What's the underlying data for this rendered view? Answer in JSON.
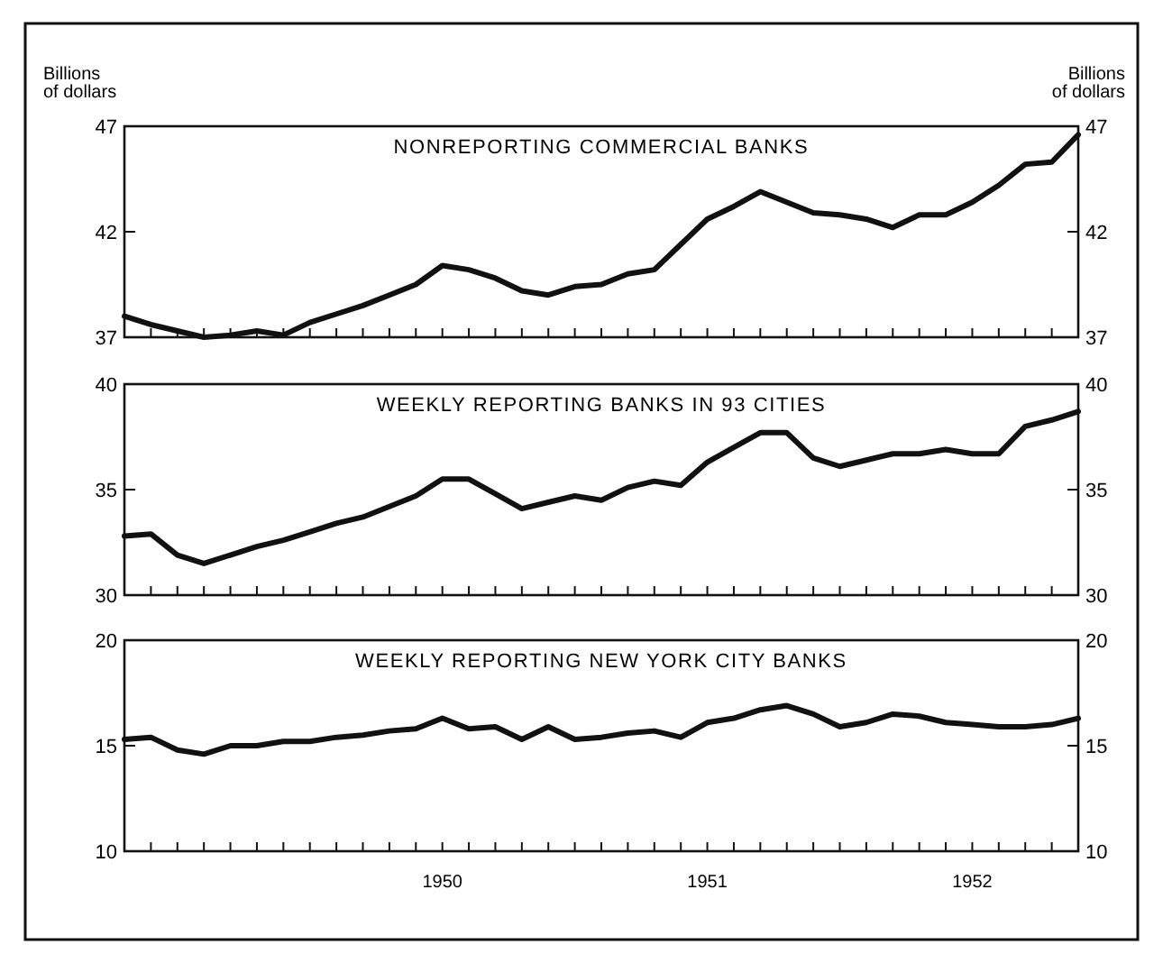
{
  "chart_data": [
    {
      "type": "line",
      "title": "NONREPORTING COMMERCIAL BANKS",
      "ylabel": "Billions of dollars",
      "y2label": "Billions of dollars",
      "categories": [
        null,
        null,
        null,
        null,
        null,
        null,
        null,
        null,
        null,
        null,
        null,
        null,
        null,
        null,
        null,
        null,
        null,
        null,
        null,
        null,
        null,
        null,
        null,
        null,
        null,
        null,
        null,
        null,
        null,
        null,
        null,
        null,
        null,
        null,
        null,
        null,
        null
      ],
      "tick_labels": "y",
      "ylim": [
        37,
        47
      ],
      "yticks": [
        37,
        42,
        47
      ],
      "y2lim": [
        37,
        47
      ],
      "y2ticks": [
        37,
        42,
        47
      ],
      "marker": "none",
      "line_style": "solid",
      "series": [
        {
          "color": "#111111",
          "values": [
            38.0,
            37.6,
            37.3,
            37.0,
            37.1,
            37.3,
            37.1,
            37.7,
            38.1,
            38.5,
            39.0,
            39.5,
            40.4,
            40.2,
            39.8,
            39.2,
            39.0,
            39.4,
            39.5,
            40.0,
            40.2,
            41.4,
            42.6,
            43.2,
            43.9,
            43.4,
            42.9,
            42.8,
            42.6,
            42.2,
            42.8,
            42.8,
            43.4,
            44.2,
            45.2,
            45.3,
            46.6
          ]
        }
      ]
    },
    {
      "type": "line",
      "title": "WEEKLY REPORTING BANKS IN 93 CITIES",
      "categories": [
        null,
        null,
        null,
        null,
        null,
        null,
        null,
        null,
        null,
        null,
        null,
        null,
        null,
        null,
        null,
        null,
        null,
        null,
        null,
        null,
        null,
        null,
        null,
        null,
        null,
        null,
        null,
        null,
        null,
        null,
        null,
        null,
        null,
        null,
        null,
        null,
        null
      ],
      "tick_labels": "y",
      "ylim": [
        30,
        40
      ],
      "yticks": [
        30,
        35,
        40
      ],
      "y2lim": [
        30,
        40
      ],
      "y2ticks": [
        30,
        35,
        40
      ],
      "marker": "none",
      "line_style": "solid",
      "series": [
        {
          "color": "#111111",
          "values": [
            32.8,
            32.9,
            31.9,
            31.5,
            31.9,
            32.3,
            32.6,
            33.0,
            33.4,
            33.7,
            34.2,
            34.7,
            35.5,
            35.5,
            34.8,
            34.1,
            34.4,
            34.7,
            34.5,
            35.1,
            35.4,
            35.2,
            36.3,
            37.0,
            37.7,
            37.7,
            36.5,
            36.1,
            36.4,
            36.7,
            36.7,
            36.9,
            36.7,
            36.7,
            38.0,
            38.3,
            38.7
          ]
        }
      ]
    },
    {
      "type": "line",
      "title": "WEEKLY REPORTING NEW YORK CITY BANKS",
      "categories": [
        null,
        null,
        null,
        null,
        null,
        null,
        null,
        null,
        null,
        null,
        null,
        null,
        "1950",
        null,
        null,
        null,
        null,
        null,
        null,
        null,
        null,
        null,
        "1951",
        null,
        null,
        null,
        null,
        null,
        null,
        null,
        null,
        null,
        "1952",
        null,
        null,
        null,
        null
      ],
      "ylim": [
        10,
        20
      ],
      "yticks": [
        10,
        15,
        20
      ],
      "y2lim": [
        10,
        20
      ],
      "y2ticks": [
        10,
        15,
        20
      ],
      "marker": "none",
      "line_style": "solid",
      "series": [
        {
          "color": "#111111",
          "values": [
            15.3,
            15.4,
            14.8,
            14.6,
            15.0,
            15.0,
            15.2,
            15.2,
            15.4,
            15.5,
            15.7,
            15.8,
            16.3,
            15.8,
            15.9,
            15.3,
            15.9,
            15.3,
            15.4,
            15.6,
            15.7,
            15.4,
            16.1,
            16.3,
            16.7,
            16.9,
            16.5,
            15.9,
            16.1,
            16.5,
            16.4,
            16.1,
            16.0,
            15.9,
            15.9,
            16.0,
            16.3
          ]
        }
      ]
    }
  ]
}
